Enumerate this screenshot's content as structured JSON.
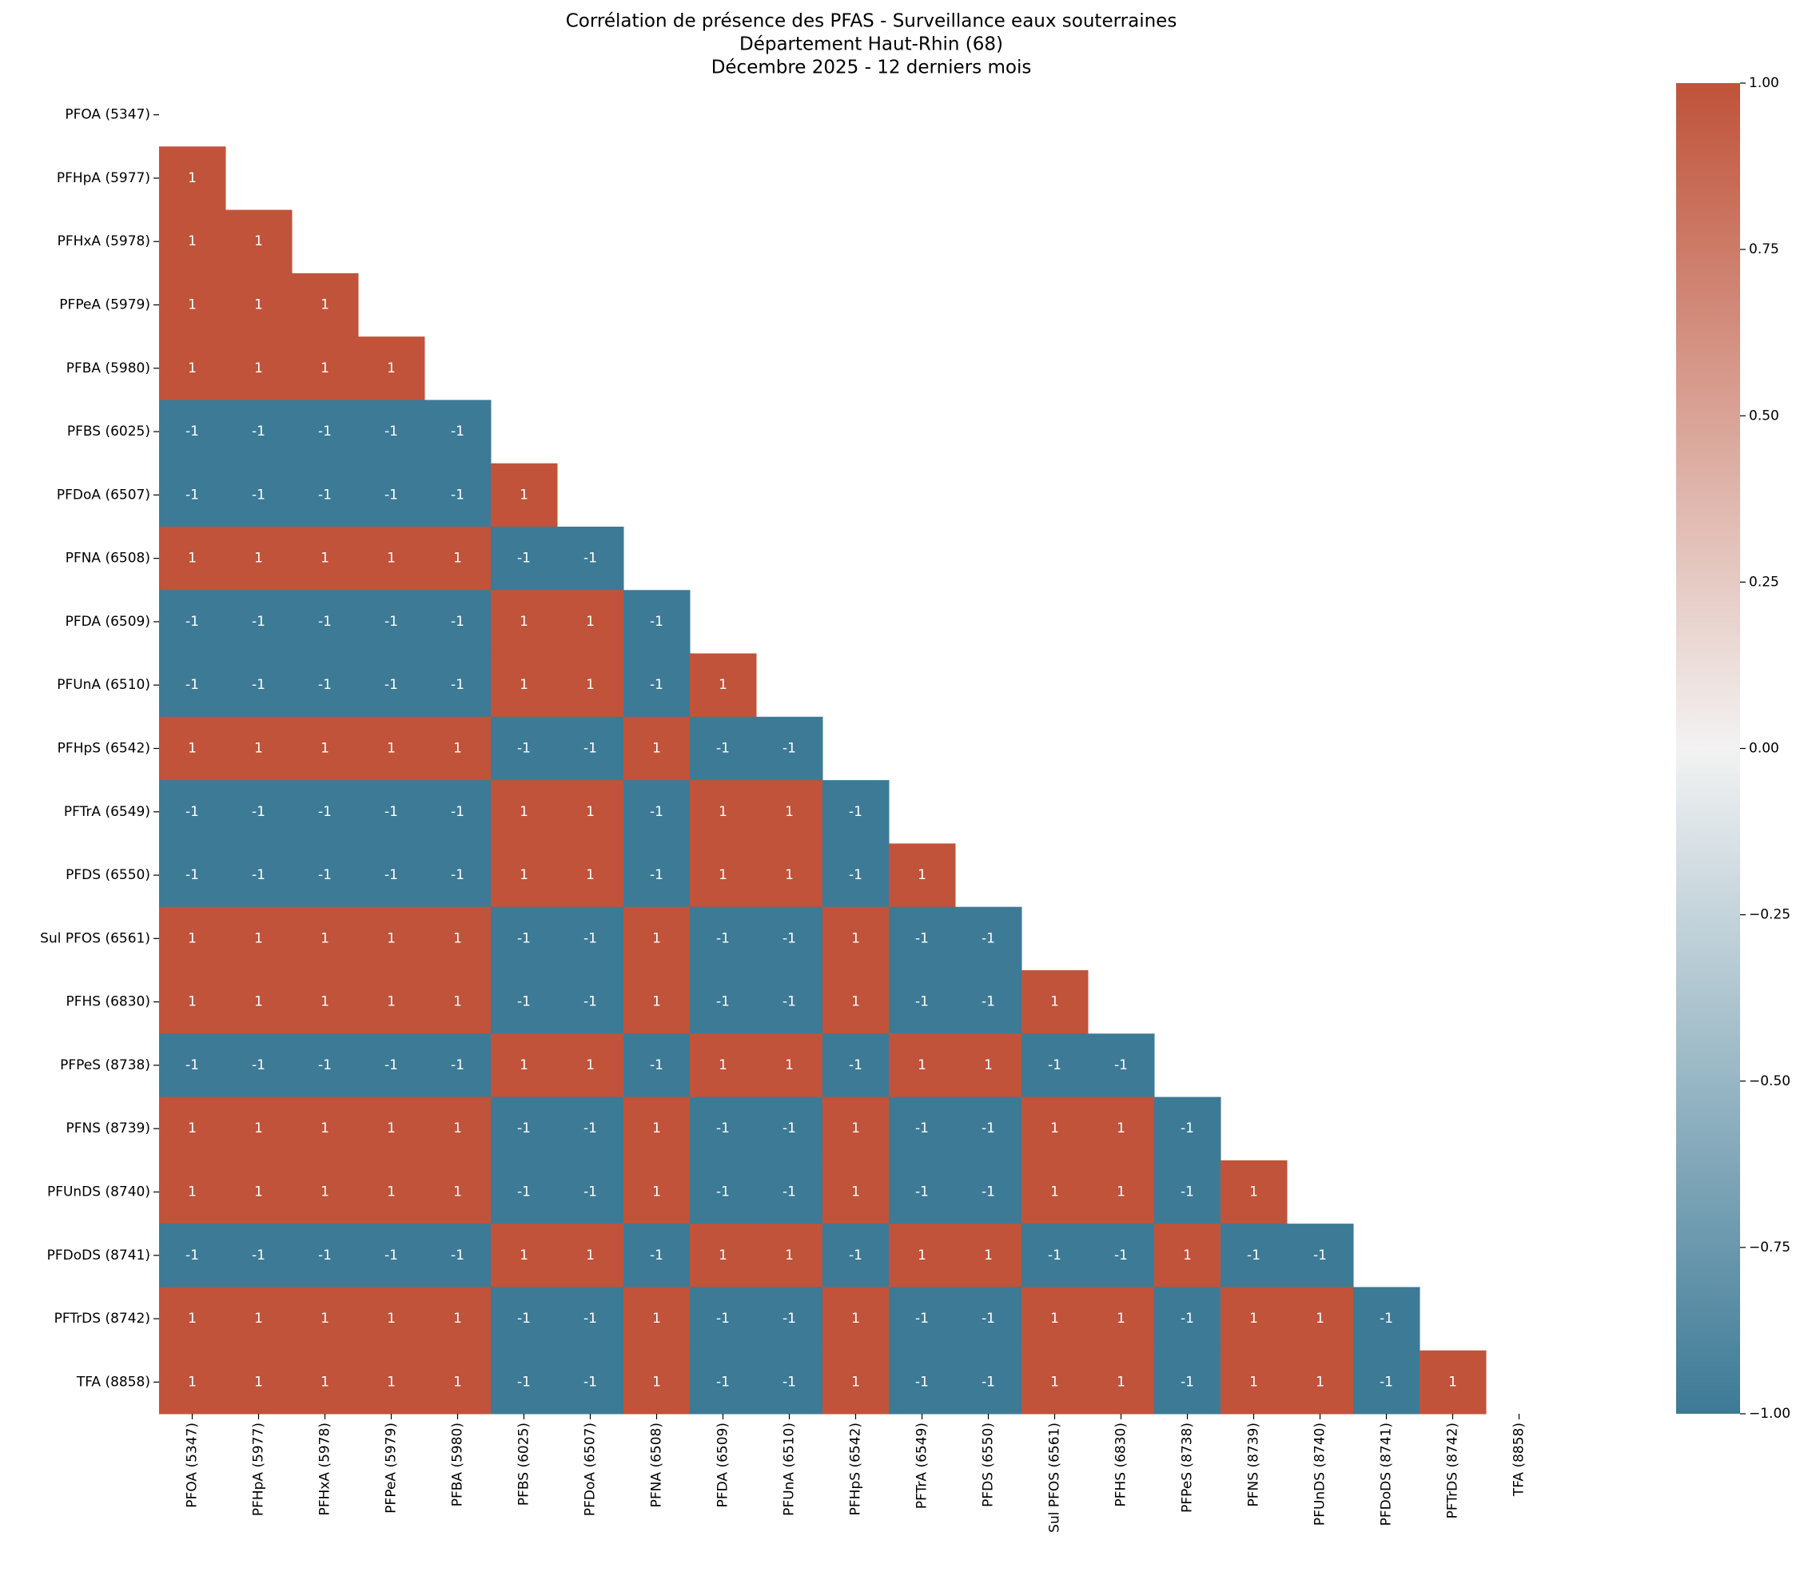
{
  "chart_data": {
    "type": "heatmap",
    "title": [
      "Corrélation de présence des PFAS - Surveillance eaux souterraines",
      "Département Haut-Rhin (68)",
      "Décembre 2025 - 12 derniers mois"
    ],
    "categories": [
      "PFOA (5347)",
      "PFHpA (5977)",
      "PFHxA (5978)",
      "PFPeA (5979)",
      "PFBA (5980)",
      "PFBS (6025)",
      "PFDoA (6507)",
      "PFNA (6508)",
      "PFDA (6509)",
      "PFUnA (6510)",
      "PFHpS (6542)",
      "PFTrA (6549)",
      "PFDS (6550)",
      "Sul PFOS (6561)",
      "PFHS (6830)",
      "PFPeS (8738)",
      "PFNS (8739)",
      "PFUnDS (8740)",
      "PFDoDS (8741)",
      "PFTrDS (8742)",
      "TFA (8858)"
    ],
    "values": [
      [
        null,
        null,
        null,
        null,
        null,
        null,
        null,
        null,
        null,
        null,
        null,
        null,
        null,
        null,
        null,
        null,
        null,
        null,
        null,
        null,
        null
      ],
      [
        1,
        null,
        null,
        null,
        null,
        null,
        null,
        null,
        null,
        null,
        null,
        null,
        null,
        null,
        null,
        null,
        null,
        null,
        null,
        null,
        null
      ],
      [
        1,
        1,
        null,
        null,
        null,
        null,
        null,
        null,
        null,
        null,
        null,
        null,
        null,
        null,
        null,
        null,
        null,
        null,
        null,
        null,
        null
      ],
      [
        1,
        1,
        1,
        null,
        null,
        null,
        null,
        null,
        null,
        null,
        null,
        null,
        null,
        null,
        null,
        null,
        null,
        null,
        null,
        null,
        null
      ],
      [
        1,
        1,
        1,
        1,
        null,
        null,
        null,
        null,
        null,
        null,
        null,
        null,
        null,
        null,
        null,
        null,
        null,
        null,
        null,
        null,
        null
      ],
      [
        -1,
        -1,
        -1,
        -1,
        -1,
        null,
        null,
        null,
        null,
        null,
        null,
        null,
        null,
        null,
        null,
        null,
        null,
        null,
        null,
        null,
        null
      ],
      [
        -1,
        -1,
        -1,
        -1,
        -1,
        1,
        null,
        null,
        null,
        null,
        null,
        null,
        null,
        null,
        null,
        null,
        null,
        null,
        null,
        null,
        null
      ],
      [
        1,
        1,
        1,
        1,
        1,
        -1,
        -1,
        null,
        null,
        null,
        null,
        null,
        null,
        null,
        null,
        null,
        null,
        null,
        null,
        null,
        null
      ],
      [
        -1,
        -1,
        -1,
        -1,
        -1,
        1,
        1,
        -1,
        null,
        null,
        null,
        null,
        null,
        null,
        null,
        null,
        null,
        null,
        null,
        null,
        null
      ],
      [
        -1,
        -1,
        -1,
        -1,
        -1,
        1,
        1,
        -1,
        1,
        null,
        null,
        null,
        null,
        null,
        null,
        null,
        null,
        null,
        null,
        null,
        null
      ],
      [
        1,
        1,
        1,
        1,
        1,
        -1,
        -1,
        1,
        -1,
        -1,
        null,
        null,
        null,
        null,
        null,
        null,
        null,
        null,
        null,
        null,
        null
      ],
      [
        -1,
        -1,
        -1,
        -1,
        -1,
        1,
        1,
        -1,
        1,
        1,
        -1,
        null,
        null,
        null,
        null,
        null,
        null,
        null,
        null,
        null,
        null
      ],
      [
        -1,
        -1,
        -1,
        -1,
        -1,
        1,
        1,
        -1,
        1,
        1,
        -1,
        1,
        null,
        null,
        null,
        null,
        null,
        null,
        null,
        null,
        null
      ],
      [
        1,
        1,
        1,
        1,
        1,
        -1,
        -1,
        1,
        -1,
        -1,
        1,
        -1,
        -1,
        null,
        null,
        null,
        null,
        null,
        null,
        null,
        null
      ],
      [
        1,
        1,
        1,
        1,
        1,
        -1,
        -1,
        1,
        -1,
        -1,
        1,
        -1,
        -1,
        1,
        null,
        null,
        null,
        null,
        null,
        null,
        null
      ],
      [
        -1,
        -1,
        -1,
        -1,
        -1,
        1,
        1,
        -1,
        1,
        1,
        -1,
        1,
        1,
        -1,
        -1,
        null,
        null,
        null,
        null,
        null,
        null
      ],
      [
        1,
        1,
        1,
        1,
        1,
        -1,
        -1,
        1,
        -1,
        -1,
        1,
        -1,
        -1,
        1,
        1,
        -1,
        null,
        null,
        null,
        null,
        null
      ],
      [
        1,
        1,
        1,
        1,
        1,
        -1,
        -1,
        1,
        -1,
        -1,
        1,
        -1,
        -1,
        1,
        1,
        -1,
        1,
        null,
        null,
        null,
        null
      ],
      [
        -1,
        -1,
        -1,
        -1,
        -1,
        1,
        1,
        -1,
        1,
        1,
        -1,
        1,
        1,
        -1,
        -1,
        1,
        -1,
        -1,
        null,
        null,
        null
      ],
      [
        1,
        1,
        1,
        1,
        1,
        -1,
        -1,
        1,
        -1,
        -1,
        1,
        -1,
        -1,
        1,
        1,
        -1,
        1,
        1,
        -1,
        null,
        null
      ],
      [
        1,
        1,
        1,
        1,
        1,
        -1,
        -1,
        1,
        -1,
        -1,
        1,
        -1,
        -1,
        1,
        1,
        -1,
        1,
        1,
        -1,
        1,
        null
      ]
    ],
    "colormap": [
      "#3d7a96",
      "#f2f2f2",
      "#c0533a"
    ],
    "clim": [
      -1,
      1
    ],
    "cticks": [
      {
        "value": -1,
        "label": "−1.00"
      },
      {
        "value": -0.75,
        "label": "−0.75"
      },
      {
        "value": -0.5,
        "label": "−0.50"
      },
      {
        "value": -0.25,
        "label": "−0.25"
      },
      {
        "value": 0,
        "label": "0.00"
      },
      {
        "value": 0.25,
        "label": "0.25"
      },
      {
        "value": 0.5,
        "label": "0.50"
      },
      {
        "value": 0.75,
        "label": "0.75"
      },
      {
        "value": 1,
        "label": "1.00"
      }
    ]
  }
}
